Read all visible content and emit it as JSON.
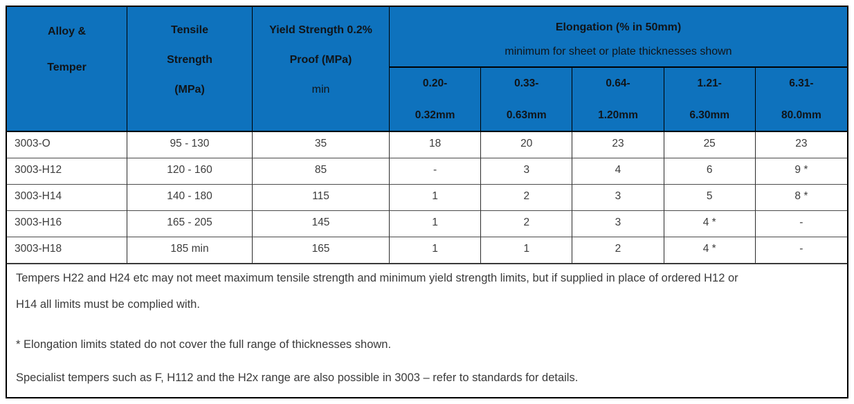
{
  "colors": {
    "header_bg": "#0e72bd",
    "header_text": "#101418",
    "cell_text": "#3c3c3c",
    "border": "#000000"
  },
  "header": {
    "alloy_temper": "Alloy &\nTemper",
    "tensile_strength": "Tensile\nStrength\n(MPa)",
    "yield_strength": "Yield Strength 0.2%\nProof (MPa)",
    "yield_strength_sub": "min",
    "elongation_title": "Elongation (% in 50mm)",
    "elongation_subtitle": "minimum for sheet or plate thicknesses shown",
    "thickness_cols": [
      "0.20-\n0.32mm",
      "0.33-\n0.63mm",
      "0.64-\n1.20mm",
      "1.21-\n6.30mm",
      "6.31-\n80.0mm"
    ]
  },
  "rows": [
    {
      "alloy": "3003-O",
      "tensile": "95 - 130",
      "yield": "35",
      "elongation": [
        "18",
        "20",
        "23",
        "25",
        "23"
      ]
    },
    {
      "alloy": "3003-H12",
      "tensile": "120 - 160",
      "yield": "85",
      "elongation": [
        "-",
        "3",
        "4",
        "6",
        "9 *"
      ]
    },
    {
      "alloy": "3003-H14",
      "tensile": "140 - 180",
      "yield": "115",
      "elongation": [
        "1",
        "2",
        "3",
        "5",
        "8 *"
      ]
    },
    {
      "alloy": "3003-H16",
      "tensile": "165 - 205",
      "yield": "145",
      "elongation": [
        "1",
        "2",
        "3",
        "4 *",
        "-"
      ]
    },
    {
      "alloy": "3003-H18",
      "tensile": "185 min",
      "yield": "165",
      "elongation": [
        "1",
        "1",
        "2",
        "4 *",
        "-"
      ]
    }
  ],
  "notes": [
    "Tempers H22 and H24 etc may not meet maximum tensile strength and minimum yield strength limits, but if supplied in place of ordered H12 or H14 all limits must be complied with.",
    "* Elongation limits stated do not cover the full range of thicknesses shown.",
    "Specialist tempers such as F, H112 and the H2x range are also possible in 3003 – refer to standards for details."
  ]
}
